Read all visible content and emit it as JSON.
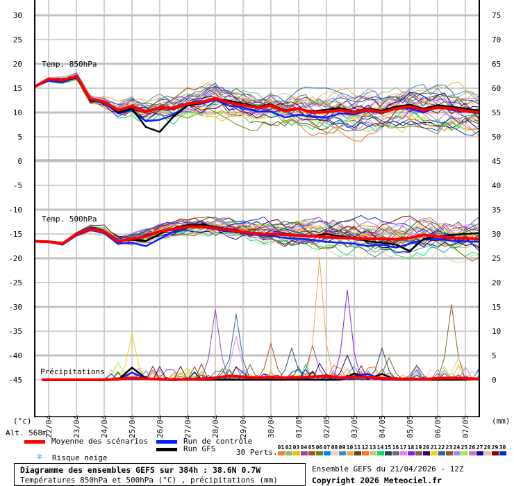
{
  "chart_data": {
    "type": "line",
    "title": "Diagramme des ensembles GEFS sur 384h : 38.6N 0.7W",
    "subtitle": "Températures 850hPa et 500hPa (°C) , précipitations (mm)",
    "run_info": "Ensemble GEFS du 21/04/2026 - 12Z",
    "copyright": "Copyright 2026 Meteociel.fr",
    "left_unit": "(°c)",
    "right_unit": "(mm)",
    "altitude": "Alt. 568m",
    "x_step_hours": 12,
    "x_labels": [
      "22/04",
      "23/04",
      "24/04",
      "25/04",
      "26/04",
      "27/04",
      "28/04",
      "29/04",
      "30/04",
      "01/05",
      "02/05",
      "03/05",
      "04/05",
      "05/05",
      "06/05",
      "07/05"
    ],
    "left_ticks_top": [
      "30",
      "25",
      "20",
      "15",
      "10",
      "5",
      "0"
    ],
    "left_ticks_bottom": [
      "-5",
      "-10",
      "-15",
      "-20",
      "-25",
      "-30",
      "-35",
      "-40",
      "-45"
    ],
    "right_ticks_top": [
      "75",
      "70",
      "65",
      "60",
      "55",
      "50",
      "45"
    ],
    "right_ticks_bottom": [
      "40",
      "35",
      "30",
      "25",
      "20",
      "15",
      "10",
      "5",
      "0"
    ],
    "ylim_left": [
      -45,
      30
    ],
    "panels": {
      "t850": {
        "label": "Temp. 850hPa",
        "mean": [
          15.3,
          16.9,
          16.6,
          17.5,
          12.8,
          12.2,
          10.5,
          11.3,
          10.2,
          11.0,
          10.9,
          11.8,
          12.1,
          12.9,
          12.0,
          11.5,
          11.0,
          11.4,
          10.3,
          10.8,
          10.0,
          10.1,
          10.5,
          10.0,
          10.6,
          10.0,
          10.8,
          11.2,
          10.5,
          11.0,
          10.8,
          10.3,
          10.0
        ],
        "control": [
          15.3,
          16.5,
          16.2,
          17.2,
          12.6,
          12.0,
          9.8,
          10.5,
          8.2,
          8.5,
          9.5,
          11.5,
          11.8,
          12.6,
          11.4,
          11.0,
          10.2,
          10.2,
          9.0,
          9.5,
          9.2,
          9.0,
          9.8,
          9.6,
          10.4,
          9.8,
          10.9,
          10.8,
          10.0,
          11.2,
          10.5,
          10.2,
          9.8
        ],
        "gfs": [
          15.3,
          16.8,
          16.5,
          17.3,
          12.5,
          12.3,
          10.0,
          10.8,
          7.0,
          6.0,
          9.2,
          11.4,
          12.0,
          12.8,
          12.4,
          11.8,
          11.2,
          11.6,
          10.5,
          10.8,
          10.2,
          10.6,
          10.9,
          10.2,
          10.8,
          10.4,
          11.2,
          11.6,
          10.8,
          11.5,
          11.2,
          10.8,
          10.4
        ],
        "spread": [
          0.3,
          0.6,
          0.8,
          1.0,
          1.2,
          1.4,
          1.7,
          2.0,
          2.2,
          2.4,
          2.5,
          2.6,
          2.7,
          2.8,
          2.9,
          3.0,
          3.0,
          3.1,
          3.1,
          3.2,
          3.2,
          3.3,
          3.3,
          3.3,
          3.4,
          3.4,
          3.4,
          3.5,
          3.5,
          3.5,
          3.5,
          3.5,
          3.5
        ]
      },
      "t500": {
        "label": "Temp. 500hPa",
        "mean": [
          -16.5,
          -16.6,
          -17.0,
          -15.0,
          -14.0,
          -14.5,
          -16.5,
          -16.0,
          -15.5,
          -14.5,
          -14.0,
          -13.5,
          -13.5,
          -13.8,
          -14.2,
          -14.6,
          -15.0,
          -15.0,
          -15.2,
          -15.3,
          -15.5,
          -15.6,
          -15.8,
          -15.9,
          -16.0,
          -16.0,
          -16.1,
          -15.8,
          -15.2,
          -15.5,
          -15.8,
          -15.9,
          -16.0
        ],
        "control": [
          -16.5,
          -16.7,
          -17.2,
          -15.3,
          -14.2,
          -14.8,
          -17.0,
          -16.8,
          -17.5,
          -16.0,
          -14.5,
          -13.6,
          -13.6,
          -14.0,
          -14.5,
          -14.8,
          -15.2,
          -15.4,
          -15.8,
          -16.0,
          -16.2,
          -16.6,
          -16.8,
          -17.0,
          -17.5,
          -17.2,
          -17.8,
          -17.0,
          -16.2,
          -16.0,
          -16.4,
          -16.5,
          -16.6
        ],
        "gfs": [
          -16.5,
          -16.6,
          -17.0,
          -15.1,
          -14.1,
          -14.6,
          -16.4,
          -16.2,
          -16.5,
          -15.0,
          -13.8,
          -13.2,
          -13.0,
          -13.6,
          -14.0,
          -14.5,
          -14.8,
          -15.0,
          -15.0,
          -15.2,
          -15.4,
          -15.0,
          -15.5,
          -15.8,
          -16.5,
          -16.8,
          -17.2,
          -18.5,
          -16.0,
          -15.5,
          -15.2,
          -15.0,
          -14.8
        ],
        "spread": [
          0.2,
          0.3,
          0.4,
          0.6,
          0.8,
          1.0,
          1.2,
          1.4,
          1.5,
          1.6,
          1.7,
          1.8,
          1.9,
          2.0,
          2.1,
          2.2,
          2.3,
          2.4,
          2.5,
          2.6,
          2.7,
          2.8,
          2.9,
          3.0,
          3.0,
          3.1,
          3.1,
          3.2,
          3.2,
          3.2,
          3.3,
          3.3,
          3.3
        ]
      },
      "precip": {
        "label": "Précipitations",
        "mean": [
          0,
          0,
          0,
          0,
          0,
          0,
          0.1,
          0.4,
          0.2,
          0.1,
          0,
          0.1,
          0.2,
          0.4,
          0.8,
          0.6,
          0.4,
          0.5,
          0.4,
          0.5,
          0.6,
          0.8,
          0.4,
          0.6,
          0.5,
          0.3,
          0.2,
          0.2,
          0.1,
          0.3,
          0.4,
          0.3,
          0.1
        ],
        "control": [
          0,
          0,
          0,
          0,
          0,
          0,
          0,
          1.5,
          0.2,
          0,
          0,
          0,
          0,
          0,
          0,
          0,
          0,
          0,
          0,
          0.3,
          0,
          0,
          0,
          0.8,
          1.2,
          0,
          0,
          0,
          0,
          0,
          0,
          0.3,
          0.2
        ],
        "gfs": [
          0,
          0,
          0,
          0,
          0,
          0,
          0,
          2.5,
          0.3,
          0,
          0,
          0,
          0,
          0,
          0,
          0,
          0,
          0,
          0,
          0,
          0,
          0,
          0,
          1.3,
          0.2,
          1.2,
          0,
          0,
          0,
          0,
          0,
          0,
          0.1
        ],
        "peaks": [
          {
            "member": 21,
            "hour": 84,
            "value": 9.5
          },
          {
            "member": 25,
            "hour": 72,
            "value": 3.5
          },
          {
            "member": 4,
            "hour": 156,
            "value": 14.5
          },
          {
            "member": 22,
            "hour": 174,
            "value": 13.5
          },
          {
            "member": 17,
            "hour": 174,
            "value": 9.0
          },
          {
            "member": 5,
            "hour": 204,
            "value": 7.5
          },
          {
            "member": 15,
            "hour": 222,
            "value": 6.5
          },
          {
            "member": 10,
            "hour": 246,
            "value": 25.0
          },
          {
            "member": 4,
            "hour": 240,
            "value": 7.0
          },
          {
            "member": 18,
            "hour": 270,
            "value": 18.5
          },
          {
            "member": 20,
            "hour": 270,
            "value": 5.0
          },
          {
            "member": 15,
            "hour": 300,
            "value": 6.5
          },
          {
            "member": 19,
            "hour": 306,
            "value": 4.5
          },
          {
            "member": 23,
            "hour": 330,
            "value": 3.0
          },
          {
            "member": 19,
            "hour": 360,
            "value": 15.5
          },
          {
            "member": 28,
            "hour": 366,
            "value": 4.5
          }
        ]
      }
    },
    "legend": {
      "mean": "Moyenne des scénarios",
      "control": "Run de contrôle",
      "gfs": "Run GFS",
      "perts": "30 Perts.",
      "snow": "Risque neige",
      "member_ids": [
        "01",
        "02",
        "03",
        "04",
        "05",
        "06",
        "07",
        "08",
        "09",
        "10",
        "11",
        "12",
        "13",
        "14",
        "15",
        "16",
        "17",
        "18",
        "19",
        "20",
        "21",
        "22",
        "23",
        "24",
        "25",
        "26",
        "27",
        "28",
        "29",
        "30"
      ]
    },
    "colors": {
      "mean": "#ff0000",
      "control": "#0022ff",
      "gfs": "#000000",
      "members": [
        "#e8822f",
        "#88c070",
        "#f0c000",
        "#8a4ca8",
        "#b05010",
        "#5a8a10",
        "#0080ff",
        "#e8d8b0",
        "#3c90c0",
        "#e8a850",
        "#604818",
        "#ff7020",
        "#d0c080",
        "#00e060",
        "#284860",
        "#687078",
        "#e080f0",
        "#8020f0",
        "#806030",
        "#300070",
        "#f0d800",
        "#2868a0",
        "#905820",
        "#a088e8",
        "#a0f040",
        "#d070d0",
        "#1800a0",
        "#e0c8a0",
        "#880808",
        "#0030c0"
      ]
    }
  }
}
